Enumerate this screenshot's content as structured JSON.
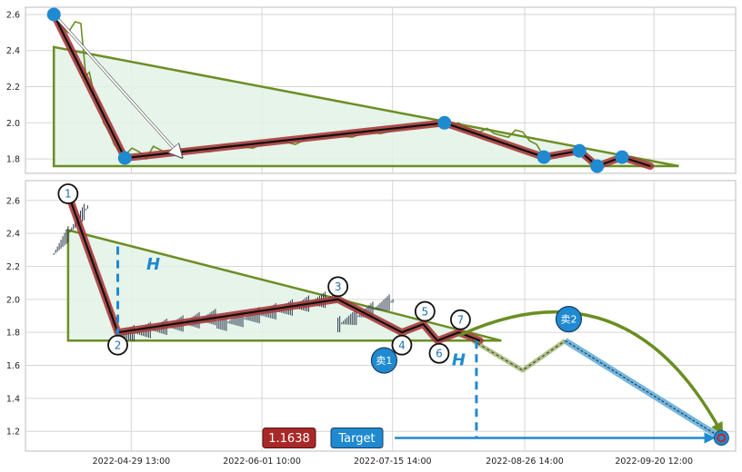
{
  "colors": {
    "background": "#ffffff",
    "grid": "#d5d5d5",
    "axis_frame": "#bdbdbd",
    "price_line": "#6b8e23",
    "triangle_edge": "#6b8e23",
    "triangle_fill": "#e2f2e6",
    "wave_outer": "#a83b3b",
    "wave_inner": "#111111",
    "pivot_marker": "#1f8ad0",
    "arrow_white": "#ffffff",
    "target_line": "#1f8ad0",
    "projection": "#6b8e23",
    "sell2_path": "#5aa9d6",
    "price_badge": "#a82828",
    "target_badge": "#1f8ad0",
    "ohlc_bars": "#2e3a4f"
  },
  "chart_data": [
    {
      "type": "line",
      "panel": "top",
      "ylim": [
        1.72,
        2.64
      ],
      "yticks": [
        "1.8",
        "2.0",
        "2.2",
        "2.4",
        "2.6"
      ],
      "xlim": [
        0,
        100
      ],
      "grid": true,
      "pivots": [
        {
          "x": 4,
          "y": 2.6
        },
        {
          "x": 14,
          "y": 1.805
        },
        {
          "x": 59,
          "y": 2.0
        },
        {
          "x": 73,
          "y": 1.81
        },
        {
          "x": 78,
          "y": 1.845
        },
        {
          "x": 80.5,
          "y": 1.76
        },
        {
          "x": 84,
          "y": 1.81
        }
      ],
      "wave_end": {
        "x": 88,
        "y": 1.76
      },
      "triangle": [
        {
          "x": 4,
          "y": 2.42
        },
        {
          "x": 92,
          "y": 1.76
        },
        {
          "x": 4,
          "y": 1.76
        }
      ],
      "arrow": {
        "from": {
          "x": 4,
          "y": 2.6
        },
        "to": {
          "x": 22,
          "y": 1.81
        }
      },
      "price_series": {
        "x": [
          4,
          5,
          6,
          7,
          7.8,
          8.5,
          9,
          9.7,
          10.4,
          11,
          11.8,
          12.5,
          13.3,
          14,
          15,
          16,
          17,
          18,
          19,
          20,
          22,
          24,
          26,
          28,
          30,
          32,
          34,
          36,
          38,
          40,
          42,
          44,
          46,
          48,
          50,
          52,
          54,
          56,
          57,
          58,
          59,
          60,
          61,
          62,
          63,
          64,
          65,
          66,
          67,
          68,
          69,
          70,
          71,
          72,
          73
        ],
        "y": [
          2.6,
          2.54,
          2.5,
          2.56,
          2.55,
          2.26,
          2.28,
          2.15,
          2.12,
          2.0,
          1.95,
          1.88,
          1.84,
          1.82,
          1.86,
          1.84,
          1.8,
          1.87,
          1.85,
          1.83,
          1.85,
          1.86,
          1.84,
          1.88,
          1.87,
          1.86,
          1.89,
          1.9,
          1.88,
          1.92,
          1.91,
          1.93,
          1.92,
          1.95,
          1.94,
          1.96,
          1.97,
          1.98,
          1.99,
          1.98,
          2.0,
          1.99,
          2.0,
          1.97,
          1.96,
          1.95,
          1.97,
          1.94,
          1.93,
          1.92,
          1.96,
          1.95,
          1.9,
          1.88,
          1.81
        ]
      }
    },
    {
      "type": "line",
      "panel": "bottom",
      "ylim": [
        1.08,
        2.72
      ],
      "yticks": [
        "1.2",
        "1.4",
        "1.6",
        "1.8",
        "2.0",
        "2.2",
        "2.4",
        "2.6"
      ],
      "x": [
        "2022-04-29 13:00",
        "2022-06-01 10:00",
        "2022-07-15 14:00",
        "2022-08-26 14:00",
        "2022-09-20 12:00"
      ],
      "xlim": [
        0,
        100
      ],
      "grid": true,
      "pivots": [
        {
          "label": "1",
          "x": 6,
          "y": 2.64
        },
        {
          "label": "2",
          "x": 13,
          "y": 1.8
        },
        {
          "label": "3",
          "x": 44,
          "y": 2.0
        },
        {
          "label": "4",
          "x": 53,
          "y": 1.8
        },
        {
          "label": "5",
          "x": 56,
          "y": 1.85
        },
        {
          "label": "6",
          "x": 58,
          "y": 1.75
        },
        {
          "label": "7",
          "x": 61,
          "y": 1.8
        }
      ],
      "triangle": [
        {
          "x": 6,
          "y": 2.42
        },
        {
          "x": 67,
          "y": 1.75
        },
        {
          "x": 6,
          "y": 1.75
        }
      ],
      "wave_end": {
        "x": 64,
        "y": 1.75
      },
      "projection_path": [
        {
          "x": 63,
          "y": 1.75
        },
        {
          "x": 70,
          "y": 1.57
        },
        {
          "x": 76,
          "y": 1.75
        }
      ],
      "sell2_path": [
        {
          "x": 76,
          "y": 1.75
        },
        {
          "x": 98,
          "y": 1.16
        }
      ],
      "arc": {
        "from": {
          "x": 61,
          "y": 1.78
        },
        "to": {
          "x": 98,
          "y": 1.16
        }
      },
      "target_line": {
        "x_from": 52,
        "x_to": 98,
        "y": 1.16
      },
      "target_vertical": {
        "x": 63.5,
        "y_from": 1.16,
        "y_to": 1.75
      },
      "height_marker": {
        "x": 13,
        "y_from": 1.78,
        "y_to": 2.32
      },
      "h_labels": [
        {
          "text": "H",
          "x": 18,
          "y": 2.18
        },
        {
          "text": "H",
          "x": 61,
          "y": 1.6
        }
      ],
      "sell_points": [
        {
          "label": "卖1",
          "x": 50.5,
          "y": 1.63
        },
        {
          "label": "卖2",
          "x": 76.5,
          "y": 1.88
        }
      ],
      "target_point": {
        "x": 98,
        "y": 1.16
      },
      "badges": {
        "price": "1.1638",
        "target": "Target"
      },
      "ohlc_segments": [
        {
          "x_from": 4,
          "x_to": 9,
          "y_low": 2.28,
          "y_high": 2.58
        },
        {
          "x_from": 9,
          "x_to": 13,
          "y_low": 1.8,
          "y_high": 2.3
        },
        {
          "x_from": 13,
          "x_to": 27,
          "y_low": 1.78,
          "y_high": 1.9
        },
        {
          "x_from": 27,
          "x_to": 44,
          "y_low": 1.85,
          "y_high": 2.02
        },
        {
          "x_from": 44,
          "x_to": 52,
          "y_low": 1.85,
          "y_high": 2.0
        }
      ]
    }
  ]
}
